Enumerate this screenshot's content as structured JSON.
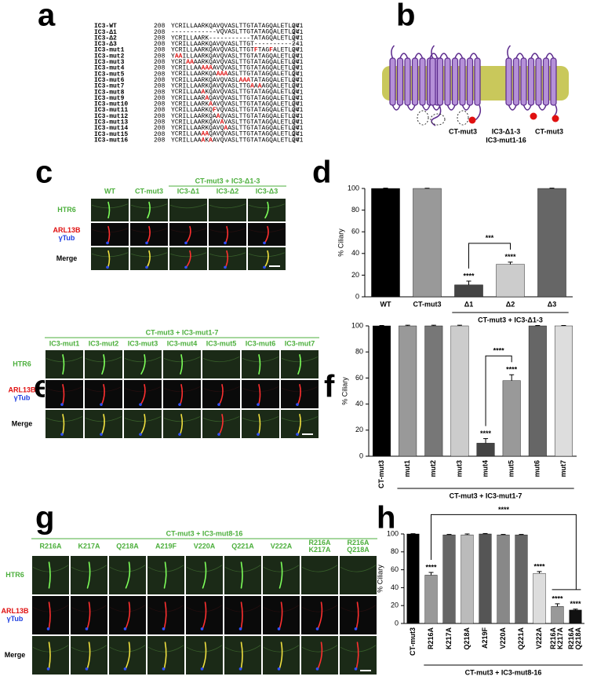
{
  "panels": {
    "a": "a",
    "b": "b",
    "c": "c",
    "d": "d",
    "e": "e",
    "f": "f",
    "g": "g",
    "h": "h"
  },
  "alignment": {
    "start": 208,
    "end": 241,
    "rows": [
      {
        "name": "IC3-WT",
        "sequence": "YCRILLAARKQAVQVASLTTGTATAGQALETLQV"
      },
      {
        "name": "IC3-Δ1",
        "sequence": "------------VQVASLTTGTATAGQALETLQV"
      },
      {
        "name": "IC3-Δ2",
        "sequence": "YCRILLAARK-----------TATAGQALETLQV"
      },
      {
        "name": "IC3-Δ3",
        "sequence": "YCRILLAARKQAVQVASLTTGT------------"
      },
      {
        "name": "IC3-mut1",
        "sequence": "YCRILLAARKQAVQVASLTTGTFTAGFALETLQV"
      },
      {
        "name": "IC3-mut2",
        "sequence": "YAAILLAARKQAVQVASLTTGTATAGQALETLQV"
      },
      {
        "name": "IC3-mut3",
        "sequence": "YCRIAAAARKQAVQVASLTTGTATAGQALETLQV"
      },
      {
        "name": "IC3-mut4",
        "sequence": "YCRILLAAAAAAVQVASLTTGTATAGQALETLQV"
      },
      {
        "name": "IC3-mut5",
        "sequence": "YCRILLAARKQAAAAASLTTGTATAGQALETLQV"
      },
      {
        "name": "IC3-mut6",
        "sequence": "YCRILLAARKQAVQVASLAAATATAGQALETLQV"
      },
      {
        "name": "IC3-mut7",
        "sequence": "YCRILLAARKQAVQVASLTTGAAAAGQALETLQV"
      },
      {
        "name": "IC3-mut8",
        "sequence": "YCRILLAAAKQAVQVASLTTGTATAGQALETLQV"
      },
      {
        "name": "IC3-mut9",
        "sequence": "YCRILLAARAQAVQVASLTTGTATAGQALETLQV"
      },
      {
        "name": "IC3-mut10",
        "sequence": "YCRILLAARKAAVQVASLTTGTATAGQALETLQV"
      },
      {
        "name": "IC3-mut11",
        "sequence": "YCRILLAARKQFVQVASLTTGTATAGQALETLQV"
      },
      {
        "name": "IC3-mut12",
        "sequence": "YCRILLAARKQAAQVASLTTGTATAGQALETLQV"
      },
      {
        "name": "IC3-mut13",
        "sequence": "YCRILLAARKQAVAVASLTTGTATAGQALETLQV"
      },
      {
        "name": "IC3-mut14",
        "sequence": "YCRILLAARKQAVQAASLTTGTATAGQALETLQV"
      },
      {
        "name": "IC3-mut15",
        "sequence": "YCRILLAAAAQAVQVASLTTGTATAGQALETLQV"
      },
      {
        "name": "IC3-mut16",
        "sequence": "YCRILLAAAKAAVQVASLTTGTATAGQALETLQV"
      }
    ]
  },
  "diagram": {
    "labels": [
      "CT-mut3",
      "IC3-Δ1-3",
      "IC3-mut1-16",
      "CT-mut3"
    ]
  },
  "micrographs": [
    {
      "group_label": "CT-mut3 + IC3-Δ1-3",
      "columns": [
        "WT",
        "CT-mut3",
        "IC3-Δ1",
        "IC3-Δ2",
        "IC3-Δ3"
      ],
      "row_labels": [
        [
          "HTR6"
        ],
        [
          "ARL13B",
          "γTub"
        ],
        [
          "Merge"
        ]
      ]
    },
    {
      "group_label": "CT-mut3 + IC3-mut1-7",
      "columns": [
        "IC3-mut1",
        "IC3-mut2",
        "IC3-mut3",
        "IC3-mut4",
        "IC3-mut5",
        "IC3-mut6",
        "IC3-mut7"
      ],
      "row_labels": [
        [
          "HTR6"
        ],
        [
          "ARL13B",
          "γTub"
        ],
        [
          "Merge"
        ]
      ]
    },
    {
      "group_label": "CT-mut3 + IC3-mut8-16",
      "columns": [
        "R216A",
        "K217A",
        "Q218A",
        "A219F",
        "V220A",
        "Q221A",
        "V222A",
        "R216A K217A",
        "R216A Q218A"
      ],
      "row_labels": [
        [
          "HTR6"
        ],
        [
          "ARL13B",
          "γTub"
        ],
        [
          "Merge"
        ]
      ]
    }
  ],
  "chart_data": [
    {
      "type": "bar",
      "y_label": "% Ciliary",
      "categories": [
        "WT",
        "CT-mut3",
        "Δ1",
        "Δ2",
        "Δ3"
      ],
      "values": [
        100,
        100,
        11,
        30,
        100
      ],
      "errors": [
        0.3,
        0.2,
        3.5,
        2,
        0.3
      ],
      "colors": [
        "#000000",
        "#999999",
        "#444444",
        "#cccccc",
        "#666666"
      ],
      "ylim": [
        0,
        100
      ],
      "yticks": [
        0,
        20,
        40,
        60,
        80,
        100
      ],
      "significance": [
        null,
        null,
        "****",
        "****",
        null
      ],
      "comparisons": [
        {
          "from": 2,
          "to": [
            3
          ],
          "label": "***"
        }
      ],
      "group": {
        "label": "CT-mut3 + IC3-Δ1-3",
        "from": 2,
        "to": 4
      }
    },
    {
      "type": "bar",
      "y_label": "% Ciliary",
      "categories": [
        "CT-mut3",
        "mut1",
        "mut2",
        "mut3",
        "mut4",
        "mut5",
        "mut6",
        "mut7"
      ],
      "values": [
        100,
        100,
        100,
        100,
        10,
        58,
        100,
        100
      ],
      "errors": [
        0.3,
        0.5,
        0.5,
        0.5,
        3.5,
        4.5,
        0.3,
        0.3
      ],
      "colors": [
        "#000000",
        "#999999",
        "#777777",
        "#cccccc",
        "#444444",
        "#999999",
        "#666666",
        "#dddddd"
      ],
      "ylim": [
        0,
        100
      ],
      "yticks": [
        0,
        20,
        40,
        60,
        80,
        100
      ],
      "significance": [
        null,
        null,
        null,
        null,
        "****",
        "****",
        null,
        null
      ],
      "comparisons": [
        {
          "from": 4,
          "to": [
            5
          ],
          "label": "****"
        }
      ],
      "group": {
        "label": "CT-mut3 + IC3-mut1-7",
        "from": 1,
        "to": 7
      }
    },
    {
      "type": "bar",
      "y_label": "% Ciliary",
      "categories": [
        "CT-mut3",
        "R216A",
        "K217A",
        "Q218A",
        "A219F",
        "V220A",
        "Q221A",
        "V222A",
        "R216A K217A",
        "R216A Q218A"
      ],
      "values": [
        100,
        54,
        99,
        99,
        100,
        99,
        99,
        56,
        19,
        15
      ],
      "errors": [
        0.3,
        3,
        0.5,
        1,
        0.5,
        0.5,
        0.5,
        2,
        3,
        1
      ],
      "colors": [
        "#000000",
        "#999999",
        "#666666",
        "#bbbbbb",
        "#555555",
        "#888888",
        "#666666",
        "#dddddd",
        "#999999",
        "#111111"
      ],
      "ylim": [
        0,
        100
      ],
      "yticks": [
        0,
        20,
        40,
        60,
        80,
        100
      ],
      "significance": [
        null,
        "****",
        null,
        null,
        null,
        null,
        null,
        "****",
        "****",
        "****"
      ],
      "comparisons": [
        {
          "from": 1,
          "to": [
            8,
            9
          ],
          "label": "****"
        }
      ],
      "group": {
        "label": "CT-mut3 + IC3-mut8-16",
        "from": 1,
        "to": 9
      }
    }
  ]
}
